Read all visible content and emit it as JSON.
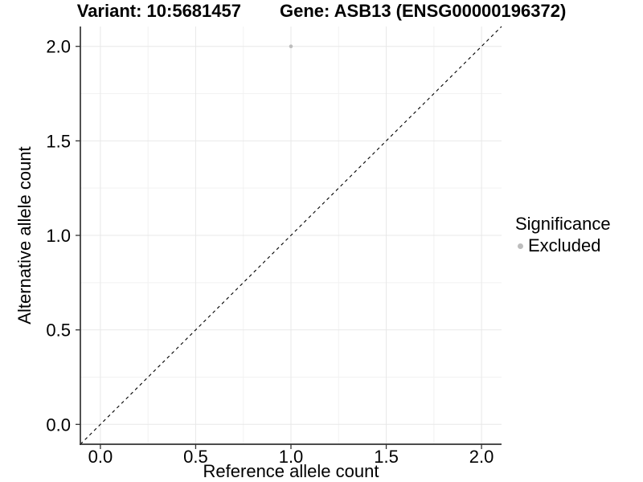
{
  "title": {
    "variant_label": "Variant: 10:5681457",
    "gene_label": "Gene: ASB13 (ENSG00000196372)"
  },
  "chart_data": {
    "type": "scatter",
    "title": "Variant: 10:5681457   Gene: ASB13 (ENSG00000196372)",
    "xlabel": "Reference allele count",
    "ylabel": "Alternative allele count",
    "xlim": [
      -0.105,
      2.105
    ],
    "ylim": [
      -0.105,
      2.105
    ],
    "x_ticks": [
      0,
      0.5,
      1,
      1.5,
      2
    ],
    "x_tick_labels": [
      "0.0",
      "0.5",
      "1.0",
      "1.5",
      "2.0"
    ],
    "y_ticks": [
      0,
      0.5,
      1,
      1.5,
      2
    ],
    "y_tick_labels": [
      "0.0",
      "0.5",
      "1.0",
      "1.5",
      "2.0"
    ],
    "minor_gridlines": [
      0.25,
      0.75,
      1.25,
      1.75
    ],
    "grid": "major+minor",
    "identity_line": {
      "style": "dashed",
      "color": "#000000",
      "from": [
        -0.105,
        -0.105
      ],
      "to": [
        2.105,
        2.105
      ]
    },
    "series": [
      {
        "name": "Excluded",
        "color": "#bdbdbd",
        "points": [
          {
            "x": 1.0,
            "y": 2.0
          }
        ]
      }
    ],
    "legend": {
      "title": "Significance",
      "position": "right",
      "items": [
        {
          "label": "Excluded",
          "color": "#bdbdbd"
        }
      ]
    },
    "colors": {
      "grid_major": "#e8e8e8",
      "grid_minor": "#f2f2f2",
      "axis_line": "#333333",
      "tick_mark": "#333333",
      "text": "#000000",
      "background": "#ffffff"
    }
  }
}
